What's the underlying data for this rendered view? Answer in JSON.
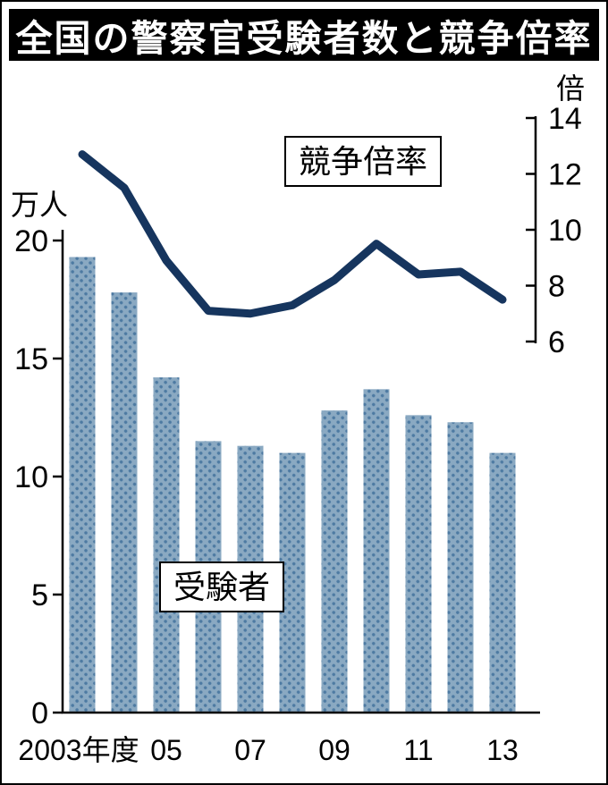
{
  "title": "全国の警察官受験者数と競争倍率",
  "legend": {
    "line_label": "競争倍率",
    "bar_label": "受験者"
  },
  "left_axis": {
    "unit": "万人",
    "ticks": [
      0,
      5,
      10,
      15,
      20
    ]
  },
  "right_axis": {
    "unit": "倍",
    "ticks": [
      6,
      8,
      10,
      12,
      14
    ]
  },
  "x_axis": {
    "labels": [
      "2003年度",
      "05",
      "07",
      "09",
      "11",
      "13"
    ],
    "label_positions": [
      0,
      2,
      4,
      6,
      8,
      10
    ]
  },
  "colors": {
    "bar_base": "#8aa9c2",
    "bar_dot": "#4d7aa2",
    "line": "#16355e",
    "axis": "#000000",
    "title_bg": "#000000",
    "title_fg": "#ffffff"
  },
  "chart_data": {
    "type": "bar+line",
    "title": "全国の警察官受験者数と競争倍率",
    "x": [
      2003,
      2004,
      2005,
      2006,
      2007,
      2008,
      2009,
      2010,
      2011,
      2012,
      2013
    ],
    "series": [
      {
        "name": "受験者",
        "type": "bar",
        "axis": "left",
        "unit": "万人",
        "values": [
          19.3,
          17.8,
          14.2,
          11.5,
          11.3,
          11.0,
          12.8,
          13.7,
          12.6,
          12.3,
          11.0
        ]
      },
      {
        "name": "競争倍率",
        "type": "line",
        "axis": "right",
        "unit": "倍",
        "values": [
          12.7,
          11.5,
          8.9,
          7.1,
          7.0,
          7.3,
          8.2,
          9.5,
          8.4,
          8.5,
          7.5
        ]
      }
    ],
    "left_ylim": [
      0,
      20
    ],
    "right_ylim": [
      6,
      14
    ],
    "grid": false,
    "legend_position": "inside"
  }
}
